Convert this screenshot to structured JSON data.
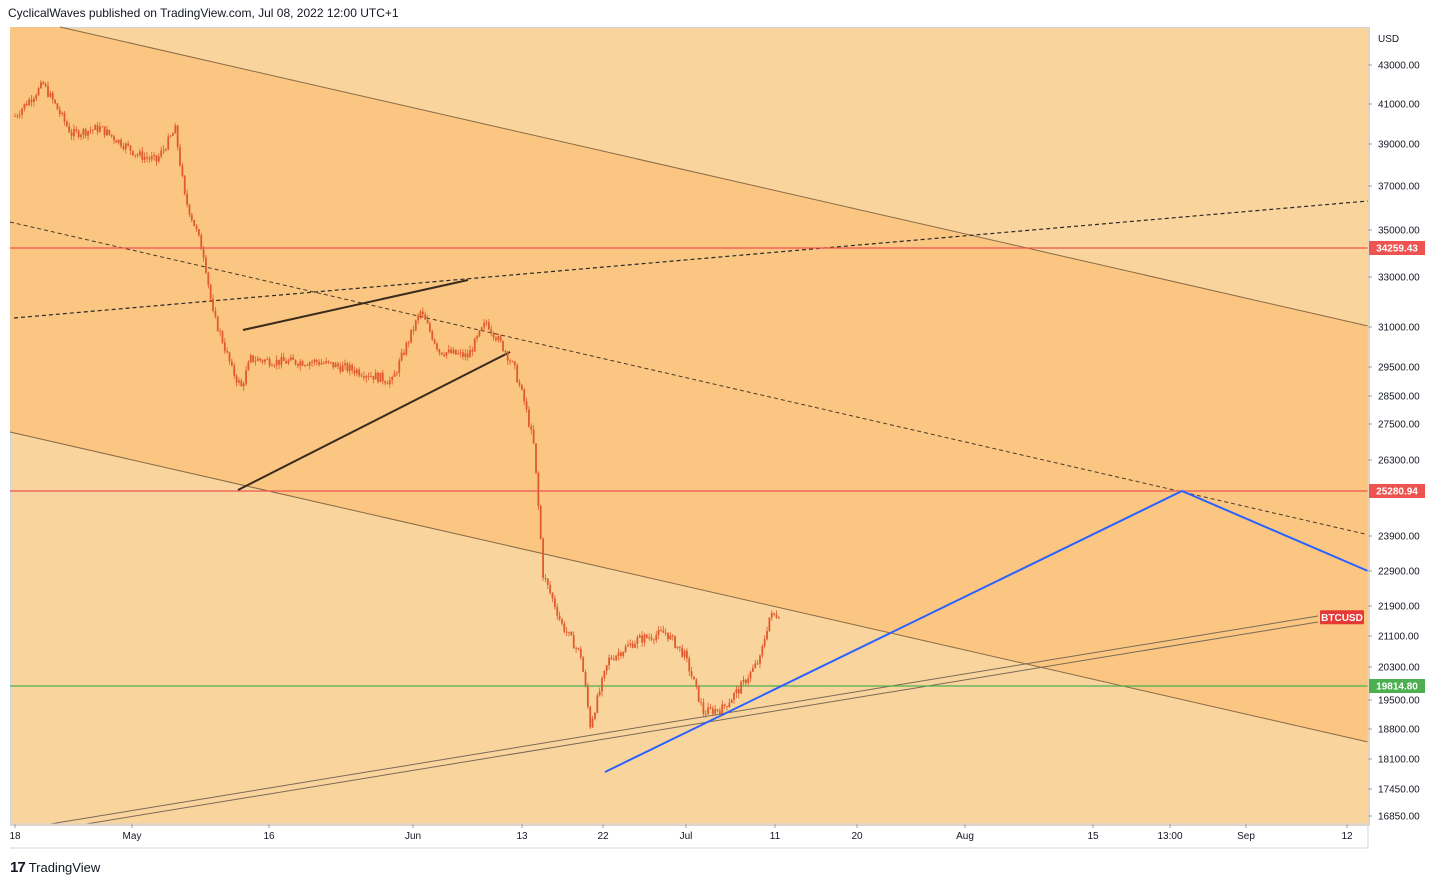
{
  "header": {
    "text": "CyclicalWaves published on TradingView.com, Jul 08, 2022 12:00 UTC+1"
  },
  "footer": {
    "logo_glyph": "17",
    "brand": "TradingView"
  },
  "colors": {
    "background": "#fad49d",
    "channel_fill": "#f9c17a",
    "candle": "#e05a2b",
    "resistance_line": "#ef5350",
    "support_line": "#4caf50",
    "projection_line": "#2962ff",
    "trend_line": "#3b2b1c"
  },
  "chart_data": {
    "type": "candlestick",
    "symbol": "BTCUSD",
    "currency": "USD",
    "x_tick_labels": [
      "18",
      "May",
      "16",
      "Jun",
      "13",
      "22",
      "Jul",
      "11",
      "20",
      "Aug",
      "15",
      "13:00",
      "Sep",
      "12"
    ],
    "y_tick_labels": [
      "43000.00",
      "41000.00",
      "39000.00",
      "37000.00",
      "35000.00",
      "33000.00",
      "31000.00",
      "29500.00",
      "28500.00",
      "27500.00",
      "26300.00",
      "23900.00",
      "22900.00",
      "21900.00",
      "21100.00",
      "20300.00",
      "19500.00",
      "18800.00",
      "18100.00",
      "17450.00",
      "16850.00"
    ],
    "price_markers": [
      {
        "label": "34259.43",
        "value": 34259.43,
        "color": "#ef5350"
      },
      {
        "label": "25280.94",
        "value": 25280.94,
        "color": "#ef5350"
      },
      {
        "label": "BTCUSD",
        "value": 21600,
        "color": "#e53935"
      },
      {
        "label": "19814.80",
        "value": 19814.8,
        "color": "#4caf50"
      }
    ],
    "horizontal_levels": [
      {
        "value": 34259.43,
        "color": "#ef5350"
      },
      {
        "value": 25280.94,
        "color": "#ef5350"
      },
      {
        "value": 19814.8,
        "color": "#4caf50"
      }
    ],
    "price_path": [
      [
        "2022-04-18",
        40400
      ],
      [
        "2022-04-21",
        42000
      ],
      [
        "2022-04-24",
        39500
      ],
      [
        "2022-04-27",
        39800
      ],
      [
        "2022-05-01",
        38500
      ],
      [
        "2022-05-03",
        38200
      ],
      [
        "2022-05-05",
        39700
      ],
      [
        "2022-05-06",
        36500
      ],
      [
        "2022-05-08",
        34000
      ],
      [
        "2022-05-09",
        31500
      ],
      [
        "2022-05-10",
        30500
      ],
      [
        "2022-05-11",
        29400
      ],
      [
        "2022-05-12",
        28800
      ],
      [
        "2022-05-13",
        29800
      ],
      [
        "2022-05-16",
        29700
      ],
      [
        "2022-05-20",
        29700
      ],
      [
        "2022-05-24",
        29400
      ],
      [
        "2022-05-28",
        29000
      ],
      [
        "2022-05-31",
        31600
      ],
      [
        "2022-06-02",
        30100
      ],
      [
        "2022-06-05",
        29900
      ],
      [
        "2022-06-07",
        31200
      ],
      [
        "2022-06-09",
        30100
      ],
      [
        "2022-06-10",
        29400
      ],
      [
        "2022-06-11",
        28300
      ],
      [
        "2022-06-12",
        26800
      ],
      [
        "2022-06-13",
        22800
      ],
      [
        "2022-06-15",
        21400
      ],
      [
        "2022-06-17",
        20600
      ],
      [
        "2022-06-18",
        18900
      ],
      [
        "2022-06-20",
        20500
      ],
      [
        "2022-06-23",
        21000
      ],
      [
        "2022-06-26",
        21200
      ],
      [
        "2022-06-28",
        20600
      ],
      [
        "2022-06-30",
        19200
      ],
      [
        "2022-07-02",
        19300
      ],
      [
        "2022-07-04",
        19800
      ],
      [
        "2022-07-06",
        20500
      ],
      [
        "2022-07-07",
        21600
      ],
      [
        "2022-07-08",
        21700
      ]
    ]
  }
}
